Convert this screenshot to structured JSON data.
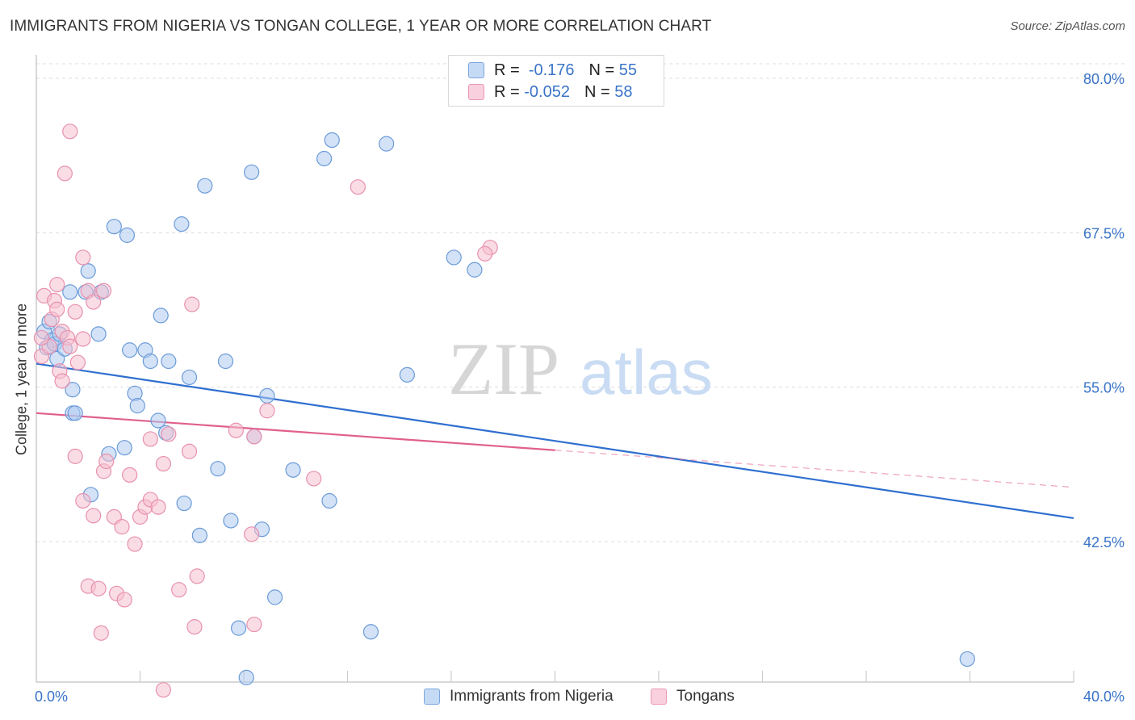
{
  "title": "IMMIGRANTS FROM NIGERIA VS TONGAN COLLEGE, 1 YEAR OR MORE CORRELATION CHART",
  "source": "Source: ZipAtlas.com",
  "watermark": {
    "zip": "ZIP",
    "atlas": "atlas"
  },
  "legend": {
    "rows": [
      {
        "r_label": "R =",
        "r_value": "-0.176",
        "n_label": "N =",
        "n_value": "55"
      },
      {
        "r_label": "R =",
        "r_value": "-0.052",
        "n_label": "N =",
        "n_value": "58"
      }
    ]
  },
  "colors": {
    "blue_fill": "#aecbf0",
    "blue_stroke": "#6b9bd8",
    "blue_line": "#2f6fd0",
    "pink_fill": "#f6bfd0",
    "pink_stroke": "#e891ae",
    "pink_line": "#e0608c",
    "axis_text": "#3a74c8",
    "grid": "#dddddd"
  },
  "chart_data": {
    "type": "scatter",
    "title": "IMMIGRANTS FROM NIGERIA VS TONGAN COLLEGE, 1 YEAR OR MORE CORRELATION CHART",
    "xlabel": "",
    "ylabel": "College, 1 year or more",
    "xlim": [
      0,
      40
    ],
    "ylim": [
      30.5,
      82.5
    ],
    "x_tick_labels": [
      "0.0%",
      "40.0%"
    ],
    "y_ticks": [
      42.5,
      55.0,
      67.5,
      80.0
    ],
    "y_tick_labels": [
      "42.5%",
      "55.0%",
      "67.5%",
      "80.0%"
    ],
    "grid": true,
    "legend_position": "top-center",
    "series": [
      {
        "name": "Immigrants from Nigeria",
        "color": "#aecbf0",
        "points": [
          [
            0.3,
            59.5
          ],
          [
            0.5,
            60.3
          ],
          [
            0.6,
            58.8
          ],
          [
            0.4,
            58.2
          ],
          [
            0.7,
            58.5
          ],
          [
            0.9,
            59.3
          ],
          [
            0.8,
            57.3
          ],
          [
            1.1,
            58.1
          ],
          [
            1.3,
            62.7
          ],
          [
            1.4,
            54.8
          ],
          [
            1.4,
            52.9
          ],
          [
            1.5,
            52.9
          ],
          [
            1.9,
            62.7
          ],
          [
            2.0,
            64.4
          ],
          [
            2.5,
            62.7
          ],
          [
            2.4,
            59.3
          ],
          [
            3.0,
            68.0
          ],
          [
            3.5,
            67.3
          ],
          [
            3.6,
            58.0
          ],
          [
            3.8,
            54.5
          ],
          [
            3.9,
            53.5
          ],
          [
            4.2,
            58.0
          ],
          [
            4.4,
            57.1
          ],
          [
            4.8,
            60.8
          ],
          [
            5.1,
            57.1
          ],
          [
            5.6,
            68.2
          ],
          [
            5.9,
            55.8
          ],
          [
            6.5,
            71.3
          ],
          [
            7.3,
            57.1
          ],
          [
            8.3,
            72.4
          ],
          [
            8.9,
            54.3
          ],
          [
            11.1,
            73.5
          ],
          [
            11.4,
            75.0
          ],
          [
            13.5,
            74.7
          ],
          [
            14.3,
            56.0
          ],
          [
            16.1,
            65.5
          ],
          [
            16.9,
            64.5
          ],
          [
            2.8,
            49.6
          ],
          [
            3.4,
            50.1
          ],
          [
            2.1,
            46.3
          ],
          [
            4.7,
            52.3
          ],
          [
            5.0,
            51.3
          ],
          [
            5.7,
            45.6
          ],
          [
            6.3,
            43.0
          ],
          [
            7.0,
            48.4
          ],
          [
            7.8,
            35.5
          ],
          [
            7.5,
            44.2
          ],
          [
            8.4,
            51.0
          ],
          [
            8.7,
            43.5
          ],
          [
            9.2,
            38.0
          ],
          [
            9.9,
            48.3
          ],
          [
            11.3,
            45.8
          ],
          [
            12.9,
            35.2
          ],
          [
            8.1,
            31.5
          ],
          [
            35.9,
            33.0
          ]
        ]
      },
      {
        "name": "Tongans",
        "color": "#f6bfd0",
        "points": [
          [
            0.2,
            57.5
          ],
          [
            0.3,
            62.4
          ],
          [
            0.5,
            58.3
          ],
          [
            0.6,
            60.5
          ],
          [
            0.7,
            62.0
          ],
          [
            0.8,
            61.3
          ],
          [
            0.8,
            63.3
          ],
          [
            0.9,
            56.3
          ],
          [
            1.0,
            59.5
          ],
          [
            1.0,
            55.5
          ],
          [
            1.2,
            59.0
          ],
          [
            1.3,
            58.3
          ],
          [
            1.6,
            57.0
          ],
          [
            1.5,
            61.1
          ],
          [
            1.8,
            65.5
          ],
          [
            1.8,
            58.9
          ],
          [
            2.0,
            62.8
          ],
          [
            2.2,
            61.9
          ],
          [
            2.6,
            62.8
          ],
          [
            1.3,
            75.7
          ],
          [
            1.1,
            72.3
          ],
          [
            6.0,
            61.7
          ],
          [
            12.4,
            71.2
          ],
          [
            17.5,
            66.3
          ],
          [
            17.3,
            65.8
          ],
          [
            8.9,
            53.1
          ],
          [
            7.7,
            51.5
          ],
          [
            8.4,
            51.0
          ],
          [
            5.1,
            51.2
          ],
          [
            4.4,
            50.8
          ],
          [
            5.9,
            49.8
          ],
          [
            3.6,
            47.9
          ],
          [
            4.9,
            48.8
          ],
          [
            1.5,
            49.4
          ],
          [
            2.6,
            48.2
          ],
          [
            2.7,
            49.0
          ],
          [
            1.8,
            45.8
          ],
          [
            2.2,
            44.6
          ],
          [
            3.0,
            44.5
          ],
          [
            3.3,
            43.7
          ],
          [
            3.8,
            42.3
          ],
          [
            4.0,
            44.5
          ],
          [
            4.2,
            45.3
          ],
          [
            4.4,
            45.9
          ],
          [
            4.7,
            45.3
          ],
          [
            10.7,
            47.6
          ],
          [
            8.3,
            43.1
          ],
          [
            2.0,
            38.9
          ],
          [
            2.4,
            38.7
          ],
          [
            3.1,
            38.3
          ],
          [
            3.4,
            37.8
          ],
          [
            5.5,
            38.6
          ],
          [
            6.2,
            39.7
          ],
          [
            2.5,
            35.1
          ],
          [
            6.1,
            35.6
          ],
          [
            8.4,
            35.8
          ],
          [
            4.9,
            30.5
          ],
          [
            0.2,
            59.0
          ]
        ]
      }
    ],
    "trend_lines": [
      {
        "series": "Immigrants from Nigeria",
        "x": [
          0,
          40
        ],
        "y": [
          56.9,
          44.4
        ],
        "dashed_from": null
      },
      {
        "series": "Tongans",
        "x": [
          0,
          40
        ],
        "y": [
          52.9,
          46.9
        ],
        "dashed_from": 20
      }
    ]
  },
  "bottom_legend": [
    "Immigrants from Nigeria",
    "Tongans"
  ]
}
